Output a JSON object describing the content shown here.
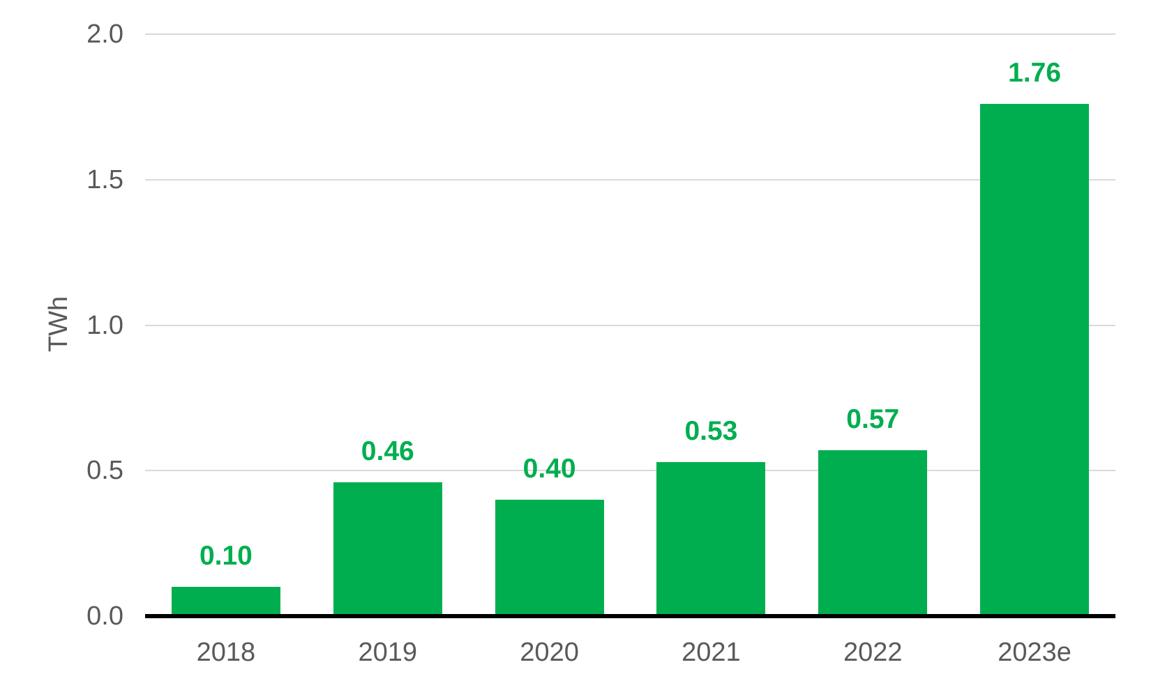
{
  "chart_data": {
    "type": "bar",
    "title": "",
    "xlabel": "",
    "ylabel": "TWh",
    "categories": [
      "2018",
      "2019",
      "2020",
      "2021",
      "2022",
      "2023e"
    ],
    "values": [
      0.1,
      0.46,
      0.4,
      0.53,
      0.57,
      1.76
    ],
    "value_labels": [
      "0.10",
      "0.46",
      "0.40",
      "0.53",
      "0.57",
      "1.76"
    ],
    "ylim": [
      0.0,
      2.0
    ],
    "yticks": [
      {
        "value": 0.0,
        "label": "0.0"
      },
      {
        "value": 0.5,
        "label": "0.5"
      },
      {
        "value": 1.0,
        "label": "1.0"
      },
      {
        "value": 1.5,
        "label": "1.5"
      },
      {
        "value": 2.0,
        "label": "2.0"
      }
    ],
    "grid": "horizontal",
    "legend": "none",
    "colors": {
      "bar": "#00AE4F",
      "value_label": "#00AE4F",
      "axis_text": "#595959",
      "gridline": "#D9D9D9",
      "axis_line": "#000000",
      "background": "#FFFFFF"
    }
  }
}
